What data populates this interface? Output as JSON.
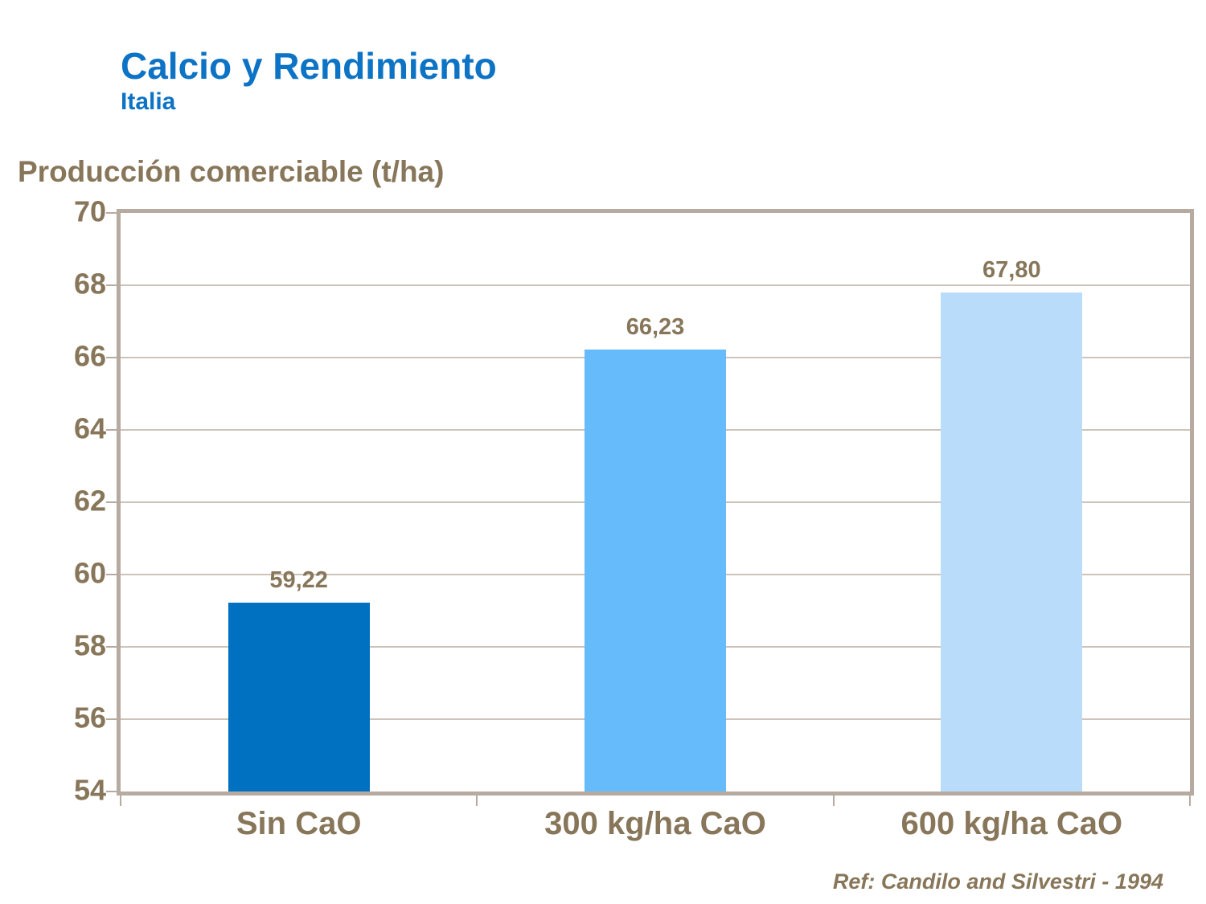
{
  "header": {
    "title": "Calcio y Rendimiento",
    "subtitle": "Italia"
  },
  "footer": {
    "reference": "Ref: Candilo and Silvestri - 1994"
  },
  "colors": {
    "title_blue": "#0d73c5",
    "label_brown": "#877659",
    "frame_taupe": "#b7aba1",
    "gridline": "#cdc3b9",
    "background": "#ffffff"
  },
  "chart_data": {
    "type": "bar",
    "title": "Calcio y Rendimiento",
    "subtitle": "Italia",
    "xlabel": "",
    "ylabel": "Producción comerciable (t/ha)",
    "categories": [
      "Sin CaO",
      "300 kg/ha CaO",
      "600 kg/ha CaO"
    ],
    "values": [
      59.22,
      66.23,
      67.8
    ],
    "value_labels": [
      "59,22",
      "66,23",
      "67,80"
    ],
    "bar_colors": [
      "#0071c1",
      "#66bbfa",
      "#b9dcfb"
    ],
    "ylim": [
      54,
      70
    ],
    "yticks": [
      54,
      56,
      58,
      60,
      62,
      64,
      66,
      68,
      70
    ],
    "grid": true,
    "legend_position": "none",
    "annotation": "Ref: Candilo and Silvestri - 1994"
  }
}
